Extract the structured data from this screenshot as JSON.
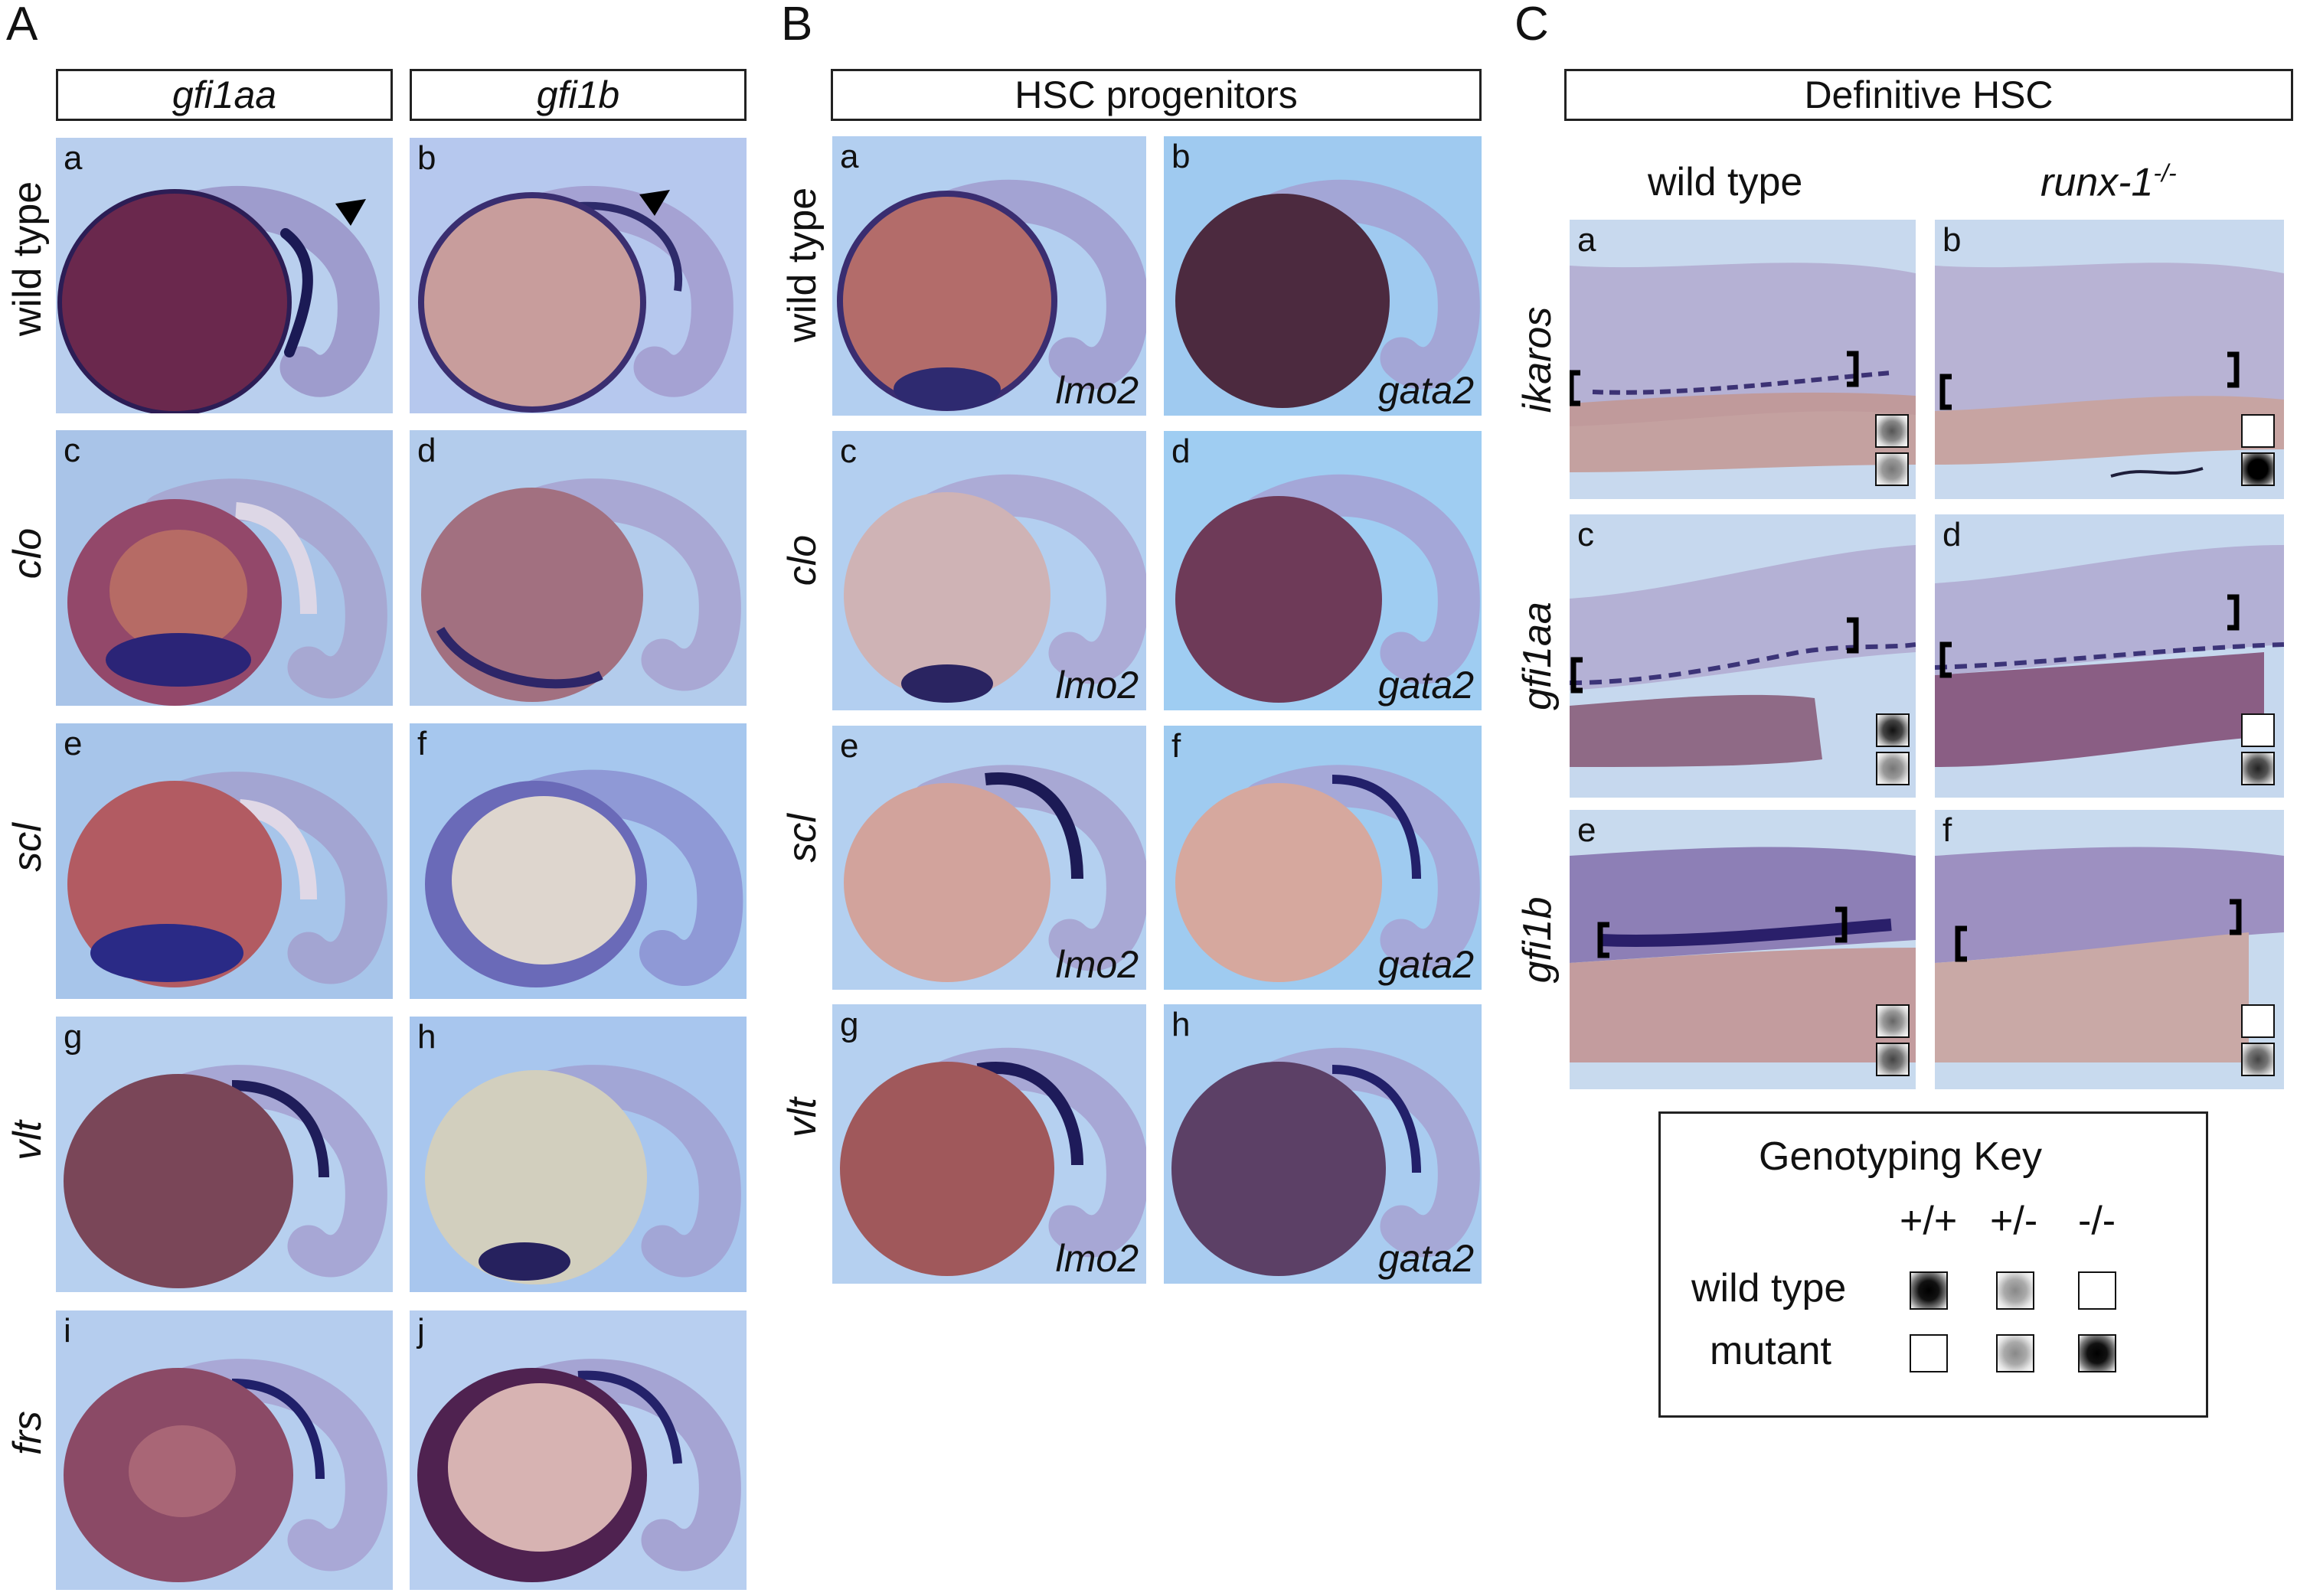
{
  "sections": {
    "A": {
      "label": "A",
      "col1": "gfi1aa",
      "col2": "gfi1b",
      "rows": [
        "wild type",
        "clo",
        "scl",
        "vlt",
        "frs"
      ],
      "panels": [
        "a",
        "b",
        "c",
        "d",
        "e",
        "f",
        "g",
        "h",
        "i",
        "j"
      ]
    },
    "B": {
      "label": "B",
      "header": "HSC progenitors",
      "rows": [
        "wild type",
        "clo",
        "scl",
        "vlt"
      ],
      "panels": [
        "a",
        "b",
        "c",
        "d",
        "e",
        "f",
        "g",
        "h"
      ],
      "genes": [
        "lmo2",
        "gata2"
      ]
    },
    "C": {
      "label": "C",
      "header": "Definitive HSC",
      "col1": "wild type",
      "col2_main": "runx-1",
      "col2_sup": "-/-",
      "rows": [
        "ikaros",
        "gfi1aa",
        "gfi1b"
      ],
      "panels": [
        "a",
        "b",
        "c",
        "d",
        "e",
        "f"
      ]
    }
  },
  "key": {
    "title": "Genotyping Key",
    "columns": [
      "+/+",
      "+/-",
      "-/-"
    ],
    "rows": [
      "wild type",
      "mutant"
    ]
  }
}
